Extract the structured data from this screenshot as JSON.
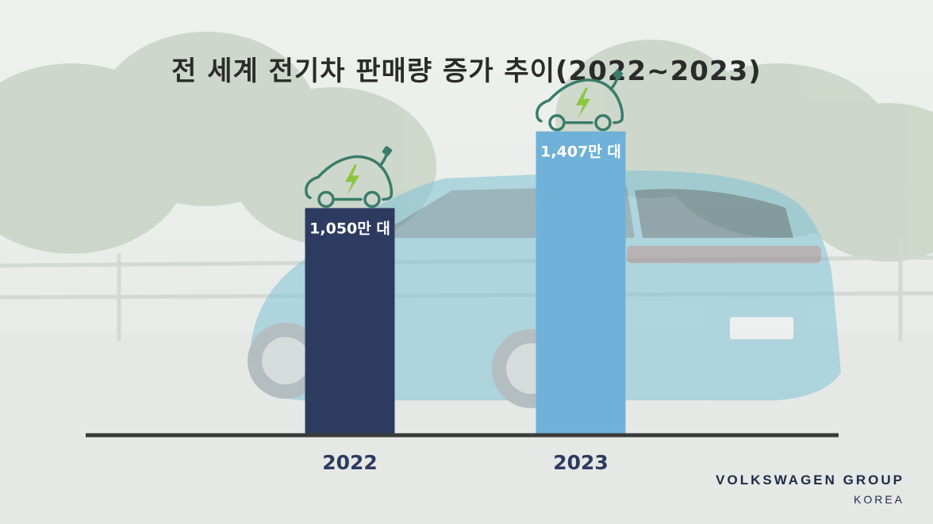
{
  "chart_data": {
    "type": "bar",
    "title": "전 세계 전기차 판매량 증가 추이(2022~2023)",
    "categories": [
      "2022",
      "2023"
    ],
    "values": [
      1050,
      1407
    ],
    "value_labels": [
      "1,050만 대",
      "1,407만 대"
    ],
    "unit": "만 대",
    "ylim": [
      0,
      1550
    ],
    "grid": false,
    "colors": [
      "#2d3b60",
      "#6fb1d8"
    ]
  },
  "icons": [
    "ev-car-charging-icon",
    "ev-car-charging-icon"
  ],
  "brand": {
    "line1": "VOLKSWAGEN GROUP",
    "line2": "KOREA"
  }
}
